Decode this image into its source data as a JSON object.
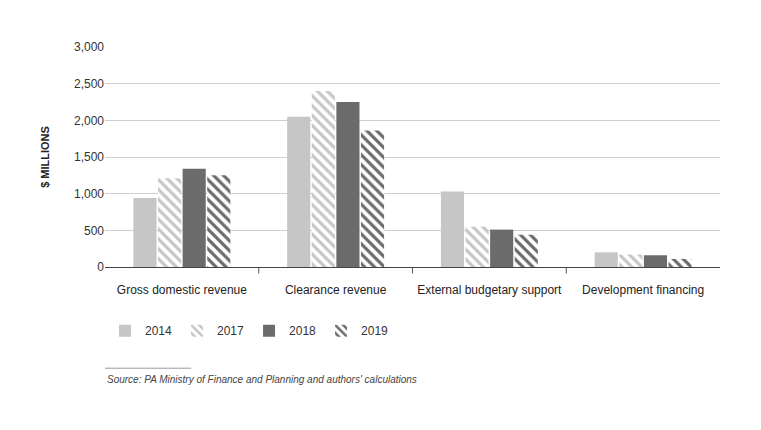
{
  "chart_data": {
    "type": "bar",
    "y_label": "$ MILLIONS",
    "annotations": [
      "Source: PA Ministry of Finance and Planning and authors' calculations"
    ],
    "categories": [
      "Gross domestic revenue",
      "Clearance revenue",
      "External budgetary support",
      "Development financing"
    ],
    "series": [
      {
        "name": "2014",
        "color": "#c6c6c6",
        "marker": "solid",
        "values": [
          940,
          2050,
          1030,
          200
        ]
      },
      {
        "name": "2017",
        "color": "#c6c6c6",
        "marker": "hatched",
        "values": [
          1210,
          2400,
          550,
          170
        ]
      },
      {
        "name": "2018",
        "color": "#6b6b6b",
        "marker": "solid",
        "values": [
          1340,
          2250,
          510,
          160
        ]
      },
      {
        "name": "2019",
        "color": "#6b6b6b",
        "marker": "hatched",
        "values": [
          1250,
          1860,
          440,
          110
        ]
      }
    ],
    "ylim": [
      0,
      3000
    ],
    "yticks": [
      0,
      500,
      {
        "value": 1000,
        "label": "1,000"
      },
      {
        "value": 1500,
        "label": "1,500"
      },
      {
        "value": 2000,
        "label": "2,000"
      },
      {
        "value": 2500,
        "label": "2,500"
      },
      {
        "value": 3000,
        "label": "3,000"
      }
    ],
    "grid": true,
    "legend": "bottom"
  }
}
